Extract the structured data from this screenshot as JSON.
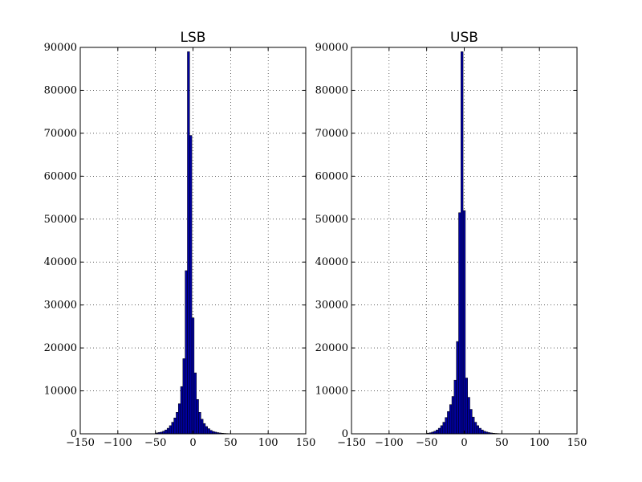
{
  "chart_data": [
    {
      "type": "bar",
      "title": "LSB",
      "xlabel": "",
      "ylabel": "",
      "xlim": [
        -150,
        150
      ],
      "ylim": [
        0,
        90000
      ],
      "xticks": [
        "−150",
        "−100",
        "−50",
        "0",
        "50",
        "100",
        "150"
      ],
      "yticks": [
        "0",
        "10000",
        "20000",
        "30000",
        "40000",
        "50000",
        "60000",
        "70000",
        "80000",
        "90000"
      ],
      "grid": true,
      "bin_width": 3,
      "x": [
        -48,
        -45,
        -42,
        -39,
        -36,
        -33,
        -30,
        -27,
        -24,
        -21,
        -18,
        -15,
        -12,
        -9,
        -6,
        -3,
        0,
        3,
        6,
        9,
        12,
        15,
        18,
        21,
        24,
        27,
        30,
        33,
        36,
        39,
        42,
        45,
        48
      ],
      "values": [
        200,
        300,
        400,
        600,
        900,
        1300,
        1900,
        2700,
        3700,
        5000,
        7000,
        11000,
        17500,
        38000,
        89000,
        69500,
        27000,
        14200,
        8000,
        5000,
        3400,
        2400,
        1700,
        1200,
        800,
        550,
        400,
        280,
        200,
        140,
        100,
        70,
        50
      ]
    },
    {
      "type": "bar",
      "title": "USB",
      "xlabel": "",
      "ylabel": "",
      "xlim": [
        -150,
        150
      ],
      "ylim": [
        0,
        90000
      ],
      "xticks": [
        "−150",
        "−100",
        "−50",
        "0",
        "50",
        "100",
        "150"
      ],
      "yticks": [
        "0",
        "10000",
        "20000",
        "30000",
        "40000",
        "50000",
        "60000",
        "70000",
        "80000",
        "90000"
      ],
      "grid": true,
      "bin_width": 3,
      "x": [
        -48,
        -45,
        -42,
        -39,
        -36,
        -33,
        -30,
        -27,
        -24,
        -21,
        -18,
        -15,
        -12,
        -9,
        -6,
        -3,
        0,
        3,
        6,
        9,
        12,
        15,
        18,
        21,
        24,
        27,
        30,
        33,
        36,
        39,
        42,
        45,
        48
      ],
      "values": [
        150,
        250,
        400,
        600,
        900,
        1300,
        1900,
        2700,
        3800,
        5200,
        6800,
        8700,
        12500,
        21500,
        51500,
        89000,
        52000,
        13000,
        8500,
        5700,
        3900,
        2700,
        1900,
        1300,
        900,
        600,
        420,
        290,
        200,
        140,
        100,
        70,
        50
      ]
    }
  ]
}
